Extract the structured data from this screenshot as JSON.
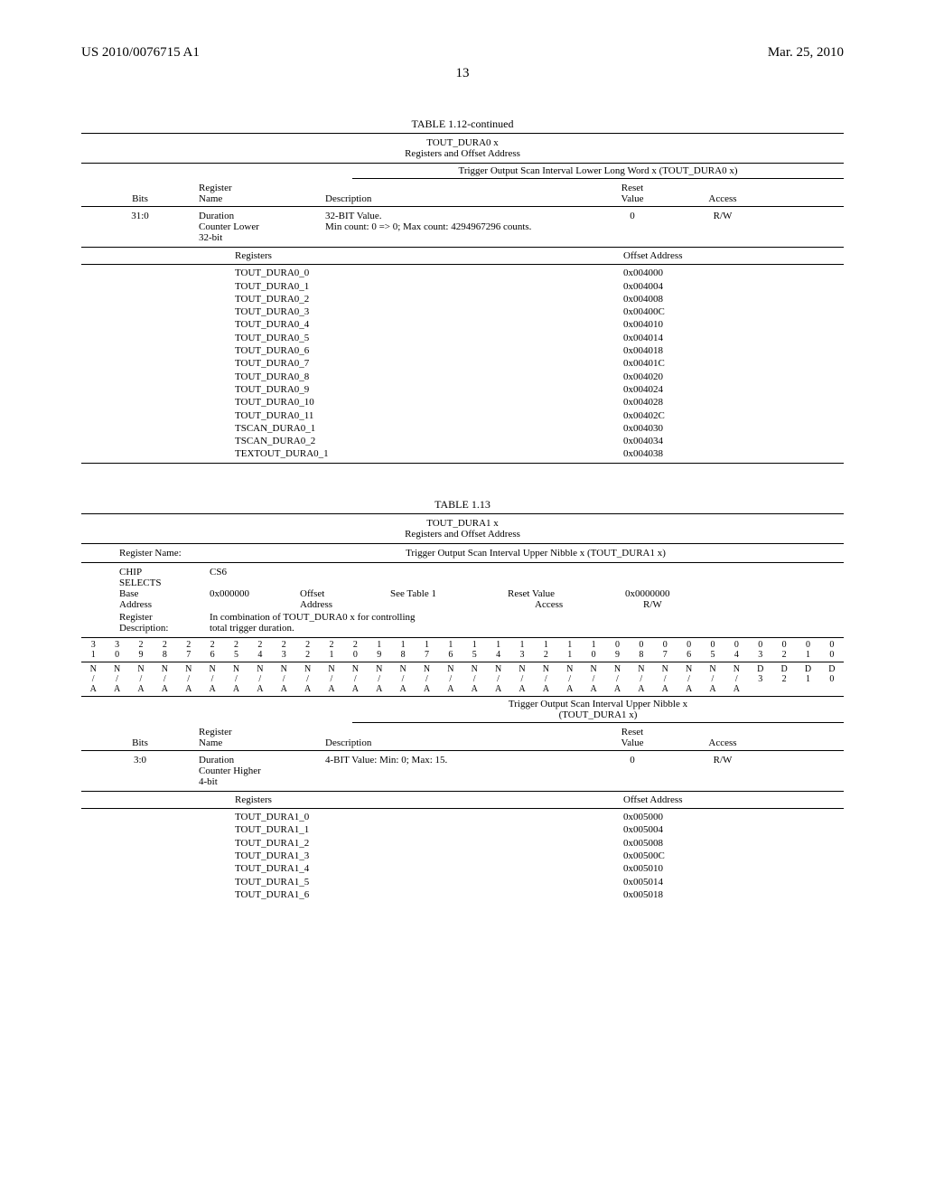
{
  "header": {
    "pub": "US 2010/0076715 A1",
    "date": "Mar. 25, 2010"
  },
  "page_number": "13",
  "table112": {
    "title": "TABLE 1.12-continued",
    "subtitle_1": "TOUT_DURA0 x",
    "subtitle_2": "Registers and Offset Address",
    "section_header": "Trigger Output Scan Interval Lower Long Word x (TOUT_DURA0 x)",
    "cols": {
      "bits": "Bits",
      "register_label": "Register",
      "name": "Name",
      "desc": "Description",
      "reset_label": "Reset",
      "reset": "Value",
      "access": "Access"
    },
    "row": {
      "bits": "31:0",
      "name_l1": "Duration",
      "name_l2": "Counter Lower",
      "name_l3": "32-bit",
      "desc_l1": "32-BIT Value.",
      "desc_l2": "Min count: 0 => 0; Max count: 4294967296 counts.",
      "reset": "0",
      "access": "R/W"
    },
    "list_hdr_left": "Registers",
    "list_hdr_right": "Offset Address",
    "registers": [
      {
        "n": "TOUT_DURA0_0",
        "a": "0x004000"
      },
      {
        "n": "TOUT_DURA0_1",
        "a": "0x004004"
      },
      {
        "n": "TOUT_DURA0_2",
        "a": "0x004008"
      },
      {
        "n": "TOUT_DURA0_3",
        "a": "0x00400C"
      },
      {
        "n": "TOUT_DURA0_4",
        "a": "0x004010"
      },
      {
        "n": "TOUT_DURA0_5",
        "a": "0x004014"
      },
      {
        "n": "TOUT_DURA0_6",
        "a": "0x004018"
      },
      {
        "n": "TOUT_DURA0_7",
        "a": "0x00401C"
      },
      {
        "n": "TOUT_DURA0_8",
        "a": "0x004020"
      },
      {
        "n": "TOUT_DURA0_9",
        "a": "0x004024"
      },
      {
        "n": "TOUT_DURA0_10",
        "a": "0x004028"
      },
      {
        "n": "TOUT_DURA0_11",
        "a": "0x00402C"
      },
      {
        "n": "TSCAN_DURA0_1",
        "a": "0x004030"
      },
      {
        "n": "TSCAN_DURA0_2",
        "a": "0x004034"
      },
      {
        "n": "TEXTOUT_DURA0_1",
        "a": "0x004038"
      }
    ]
  },
  "table113": {
    "title": "TABLE 1.13",
    "subtitle_1": "TOUT_DURA1 x",
    "subtitle_2": "Registers and Offset Address",
    "regname_label": "Register Name:",
    "regname_value": "Trigger Output Scan Interval Upper Nibble x (TOUT_DURA1 x)",
    "info": {
      "chip_l1": "CHIP",
      "chip_l2": "SELECTS",
      "base_l1": "Base",
      "base_l2": "Address",
      "cs": "CS6",
      "base_val": "0x000000",
      "off_l1": "Offset",
      "off_l2": "Address",
      "off_ref": "See Table 1",
      "reset_label": "Reset Value",
      "reset_val": "0x0000000",
      "access_label": "Access",
      "access_val": "R/W",
      "regdesc_l1": "Register",
      "regdesc_l2": "Description:",
      "regdesc_val_l1": "In combination of TOUT_DURA0 x for controlling",
      "regdesc_val_l2": "total trigger duration."
    },
    "bitnum_top": [
      "3",
      "3",
      "2",
      "2",
      "2",
      "2",
      "2",
      "2",
      "2",
      "2",
      "2",
      "2",
      "1",
      "1",
      "1",
      "1",
      "1",
      "1",
      "1",
      "1",
      "1",
      "1",
      "0",
      "0",
      "0",
      "0",
      "0",
      "0",
      "0",
      "0",
      "0",
      "0"
    ],
    "bitnum_bot": [
      "1",
      "0",
      "9",
      "8",
      "7",
      "6",
      "5",
      "4",
      "3",
      "2",
      "1",
      "0",
      "9",
      "8",
      "7",
      "6",
      "5",
      "4",
      "3",
      "2",
      "1",
      "0",
      "9",
      "8",
      "7",
      "6",
      "5",
      "4",
      "3",
      "2",
      "1",
      "0"
    ],
    "bitflag_top": [
      "N",
      "N",
      "N",
      "N",
      "N",
      "N",
      "N",
      "N",
      "N",
      "N",
      "N",
      "N",
      "N",
      "N",
      "N",
      "N",
      "N",
      "N",
      "N",
      "N",
      "N",
      "N",
      "N",
      "N",
      "N",
      "N",
      "N",
      "N",
      "D",
      "D",
      "D",
      "D"
    ],
    "bitflag_mid": [
      "/",
      "/",
      "/",
      "/",
      "/",
      "/",
      "/",
      "/",
      "/",
      "/",
      "/",
      "/",
      "/",
      "/",
      "/",
      "/",
      "/",
      "/",
      "/",
      "/",
      "/",
      "/",
      "/",
      "/",
      "/",
      "/",
      "/",
      "/",
      "3",
      "2",
      "1",
      "0"
    ],
    "bitflag_bot": [
      "A",
      "A",
      "A",
      "A",
      "A",
      "A",
      "A",
      "A",
      "A",
      "A",
      "A",
      "A",
      "A",
      "A",
      "A",
      "A",
      "A",
      "A",
      "A",
      "A",
      "A",
      "A",
      "A",
      "A",
      "A",
      "A",
      "A",
      "A",
      "",
      "",
      "",
      ""
    ],
    "section_header_l1": "Trigger Output Scan Interval Upper Nibble x",
    "section_header_l2": "(TOUT_DURA1 x)",
    "cols": {
      "bits": "Bits",
      "register_label": "Register",
      "name": "Name",
      "desc": "Description",
      "reset_label": "Reset",
      "reset": "Value",
      "access": "Access"
    },
    "row": {
      "bits": "3:0",
      "name_l1": "Duration",
      "name_l2": "Counter Higher",
      "name_l3": "4-bit",
      "desc": "4-BIT Value: Min: 0; Max: 15.",
      "reset": "0",
      "access": "R/W"
    },
    "list_hdr_left": "Registers",
    "list_hdr_right": "Offset Address",
    "registers": [
      {
        "n": "TOUT_DURA1_0",
        "a": "0x005000"
      },
      {
        "n": "TOUT_DURA1_1",
        "a": "0x005004"
      },
      {
        "n": "TOUT_DURA1_2",
        "a": "0x005008"
      },
      {
        "n": "TOUT_DURA1_3",
        "a": "0x00500C"
      },
      {
        "n": "TOUT_DURA1_4",
        "a": "0x005010"
      },
      {
        "n": "TOUT_DURA1_5",
        "a": "0x005014"
      },
      {
        "n": "TOUT_DURA1_6",
        "a": "0x005018"
      }
    ]
  }
}
